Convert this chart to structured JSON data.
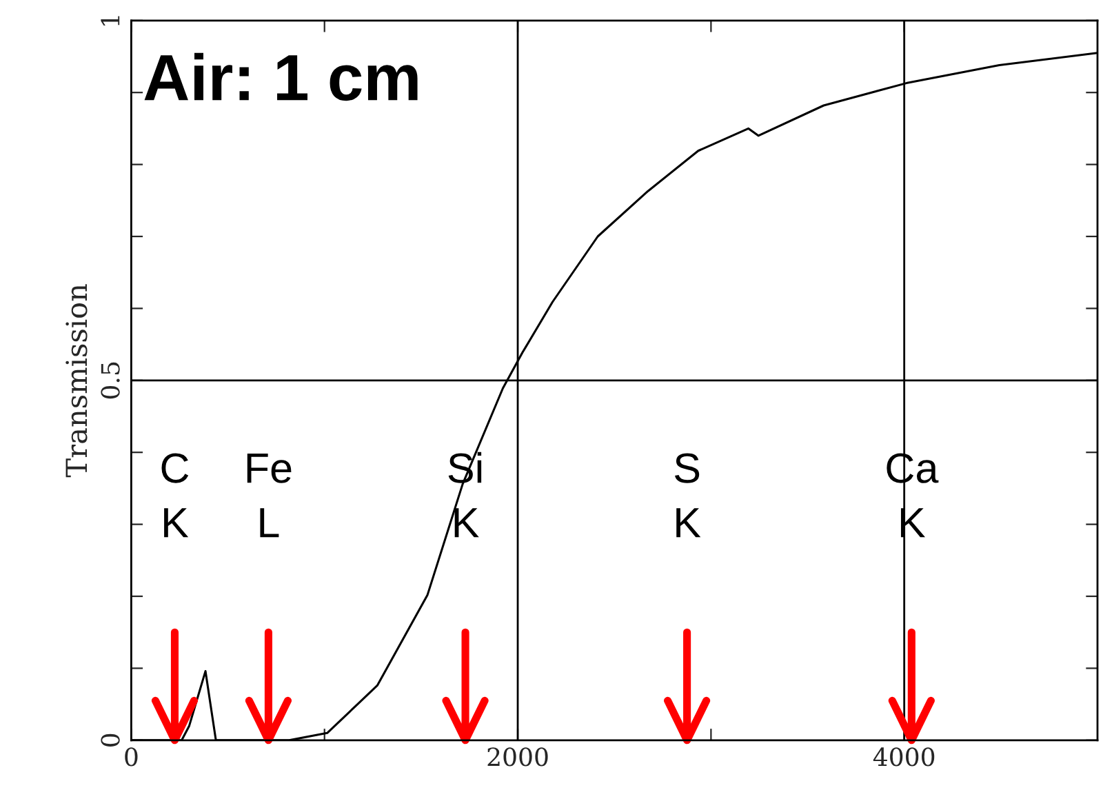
{
  "chart_data": {
    "type": "line",
    "ylabel": "Transmission",
    "x": [
      0,
      200,
      261,
      300,
      384,
      438,
      600,
      817,
      1014,
      1273,
      1533,
      1715,
      1923,
      2025,
      2180,
      2414,
      2674,
      2934,
      3194,
      3245,
      3583,
      4011,
      4492,
      5000
    ],
    "series": [
      {
        "color": "#000000",
        "values": [
          0,
          0,
          0,
          0.02,
          0.096,
          0,
          0,
          0,
          0.01,
          0.076,
          0.202,
          0.356,
          0.489,
          0.539,
          0.609,
          0.7,
          0.763,
          0.819,
          0.85,
          0.84,
          0.882,
          0.913,
          0.938,
          0.955
        ]
      }
    ],
    "xlim": [
      0,
      5000
    ],
    "ylim": [
      0,
      1
    ],
    "xticks": [
      0,
      {
        "value": 1000,
        "label": null
      },
      2000,
      {
        "value": 3000,
        "label": null
      },
      4000
    ],
    "yticks": [
      0,
      {
        "value": 0.1,
        "label": null
      },
      {
        "value": 0.2,
        "label": null
      },
      {
        "value": 0.3,
        "label": null
      },
      {
        "value": 0.4,
        "label": null
      },
      0.5,
      {
        "value": 0.6,
        "label": null
      },
      {
        "value": 0.7,
        "label": null
      },
      {
        "value": 0.8,
        "label": null
      },
      {
        "value": 0.9,
        "label": null
      },
      1
    ],
    "ref_lines": [
      {
        "axis": "x",
        "value": 2000,
        "color": "#000000"
      },
      {
        "axis": "x",
        "value": 4000,
        "color": "#000000"
      },
      {
        "axis": "y",
        "value": 0.5,
        "color": "#000000"
      },
      {
        "axis": "x",
        "value": 225,
        "label": "C\nK",
        "color": "#ff0000"
      },
      {
        "axis": "x",
        "value": 710,
        "label": "Fe\nL",
        "color": "#ff0000"
      },
      {
        "axis": "x",
        "value": 1729,
        "label": "Si\nK",
        "color": "#ff0000"
      },
      {
        "axis": "x",
        "value": 2876,
        "label": "S\nK",
        "color": "#ff0000"
      },
      {
        "axis": "x",
        "value": 4038,
        "label": "Ca\nK",
        "color": "#ff0000"
      }
    ],
    "annotations": [
      "Air: 1 cm"
    ],
    "grid": false,
    "marker": "none",
    "line_style": "solid",
    "legend": false
  }
}
